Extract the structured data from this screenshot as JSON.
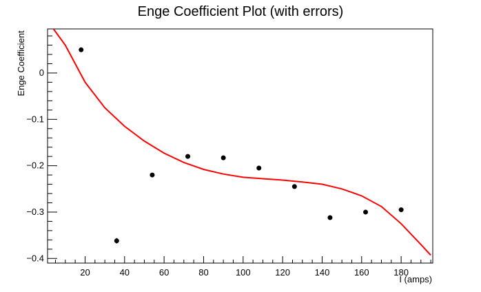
{
  "chart_data": {
    "type": "scatter",
    "title": "Enge Coefficient Plot (with errors)",
    "xlabel": "I (amps)",
    "ylabel": "Enge Coefficient",
    "xlim": [
      1,
      196
    ],
    "ylim": [
      -0.41,
      0.095
    ],
    "x_ticks": [
      20,
      40,
      60,
      80,
      100,
      120,
      140,
      160,
      180
    ],
    "x_tick_labels": [
      "20",
      "40",
      "60",
      "80",
      "100",
      "120",
      "140",
      "160",
      "180"
    ],
    "y_ticks": [
      0,
      -0.1,
      -0.2,
      -0.3,
      -0.4
    ],
    "y_tick_labels": [
      "0",
      "−0.1",
      "−0.2",
      "−0.3",
      "−0.4"
    ],
    "grid": false,
    "series": [
      {
        "type": "scatter",
        "color": "#000000",
        "marker": "circle",
        "points": [
          {
            "x": 18,
            "y": 0.05,
            "err": 0.003
          },
          {
            "x": 36,
            "y": -0.362,
            "err": 0.006
          },
          {
            "x": 54,
            "y": -0.22,
            "err": 0.003
          },
          {
            "x": 72,
            "y": -0.18,
            "err": 0.003
          },
          {
            "x": 90,
            "y": -0.183,
            "err": 0.003
          },
          {
            "x": 108,
            "y": -0.205,
            "err": 0.003
          },
          {
            "x": 126,
            "y": -0.245,
            "err": 0.003
          },
          {
            "x": 144,
            "y": -0.312,
            "err": 0.003
          },
          {
            "x": 162,
            "y": -0.3,
            "err": 0.003
          },
          {
            "x": 180,
            "y": -0.295,
            "err": 0.003
          }
        ]
      },
      {
        "type": "line",
        "color": "#ff0000",
        "x": [
          4,
          10,
          20,
          30,
          40,
          50,
          60,
          70,
          80,
          90,
          100,
          110,
          120,
          130,
          140,
          150,
          160,
          170,
          180,
          190,
          195
        ],
        "y": [
          0.095,
          0.06,
          -0.02,
          -0.075,
          -0.115,
          -0.147,
          -0.173,
          -0.193,
          -0.208,
          -0.218,
          -0.225,
          -0.228,
          -0.231,
          -0.235,
          -0.24,
          -0.25,
          -0.265,
          -0.288,
          -0.325,
          -0.37,
          -0.393
        ]
      }
    ]
  }
}
